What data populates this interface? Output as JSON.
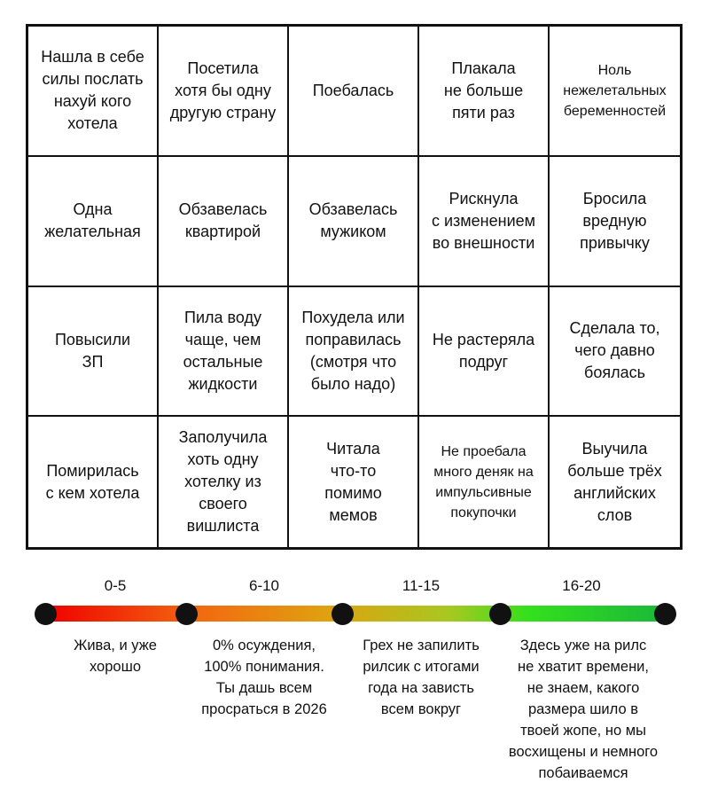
{
  "bingo": {
    "cells": [
      "Нашла в себе\nсилы послать\nнахуй кого\nхотела",
      "Посетила\nхотя бы одну\nдругую страну",
      "Поебалась",
      "Плакала\nне больше\nпяти раз",
      "Ноль\nнежелетальных\nбеременностей",
      "Одна\nжелательная",
      "Обзавелась\nквартирой",
      "Обзавелась\nмужиком",
      "Рискнула\nс изменением\nво внешности",
      "Бросила\nвредную\nпривычку",
      "Повысили\nЗП",
      "Пила воду\nчаще, чем\nостальные\nжидкости",
      "Похудела или\nпоправилась\n(смотря что\nбыло надо)",
      "Не растеряла\nподруг",
      "Сделала то,\nчего давно\nбоялась",
      "Помирилась\nс кем хотела",
      "Заполучила\nхоть одну\nхотелку из\nсвоего\nвишлиста",
      "Читала\nчто-то\nпомимо\nмемов",
      "Не проебала\nмного деняк на\nимпульсивные\nпокупочки",
      "Выучила\nбольше трёх\nанглийских\nслов"
    ]
  },
  "scale": {
    "ranges": [
      "0-5",
      "6-10",
      "11-15",
      "16-20"
    ],
    "descriptions": [
      "Жива, и уже\nхорошо",
      "0% осуждения,\n100% понимания.\nТы дашь всем\nпросраться в 2026",
      "Грех не запилить\nрилсик с итогами\nгода на зависть\nвсем вокруг",
      "Здесь уже на рилс\nне хватит времени,\nне знаем, какого\nразмера шило в\nтвоей жопе, но мы\nвосхищены и немного\nпобаиваемся"
    ]
  }
}
